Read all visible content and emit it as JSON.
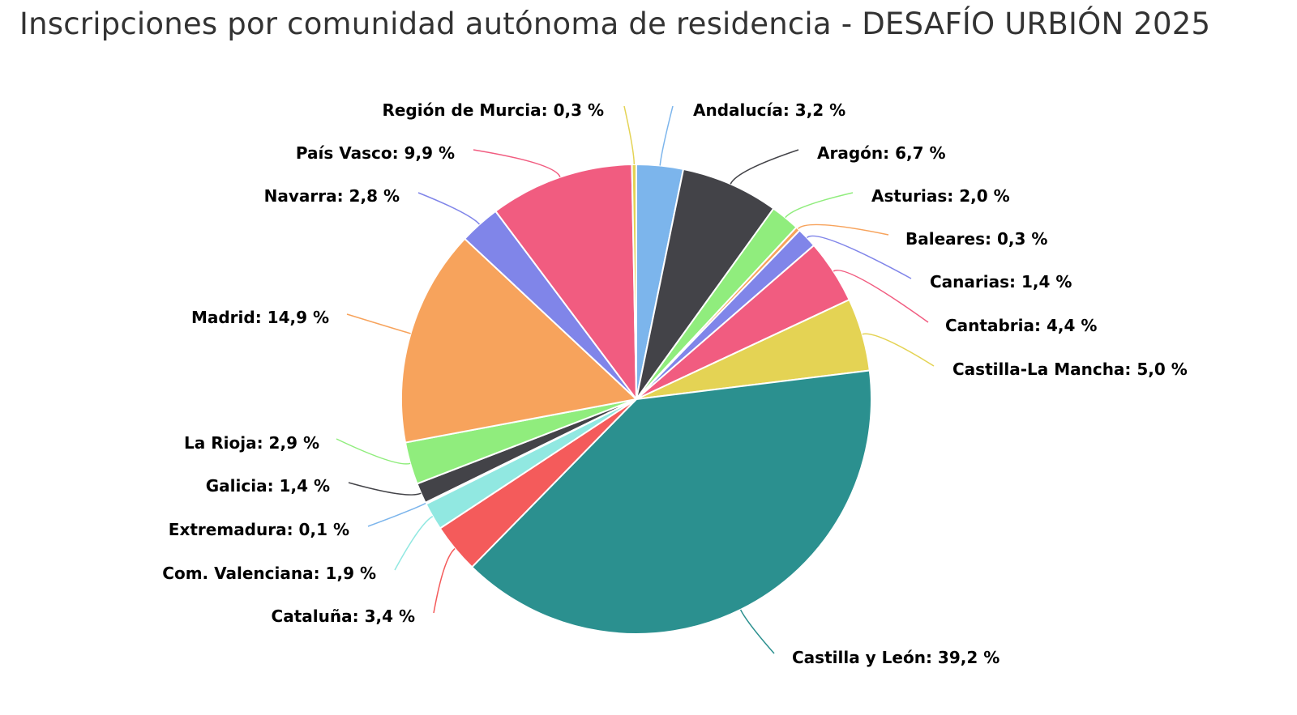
{
  "chart_data": {
    "type": "pie",
    "title": "Inscripciones por comunidad autónoma de residencia - DESAFÍO URBIÓN 2025",
    "label_format": "{name}: {value} %",
    "start_angle": "top",
    "direction": "clockwise",
    "slices": [
      {
        "name": "Andalucía",
        "value": 3.2,
        "label": "3,2",
        "color": "#7cb5ec"
      },
      {
        "name": "Aragón",
        "value": 6.7,
        "label": "6,7",
        "color": "#434348"
      },
      {
        "name": "Asturias",
        "value": 2.0,
        "label": "2,0",
        "color": "#90ed7d"
      },
      {
        "name": "Baleares",
        "value": 0.3,
        "label": "0,3",
        "color": "#f7a35c"
      },
      {
        "name": "Canarias",
        "value": 1.4,
        "label": "1,4",
        "color": "#8085e9"
      },
      {
        "name": "Cantabria",
        "value": 4.4,
        "label": "4,4",
        "color": "#f15c80"
      },
      {
        "name": "Castilla-La Mancha",
        "value": 5.0,
        "label": "5,0",
        "color": "#e4d354"
      },
      {
        "name": "Castilla y León",
        "value": 39.2,
        "label": "39,2",
        "color": "#2b908f"
      },
      {
        "name": "Cataluña",
        "value": 3.4,
        "label": "3,4",
        "color": "#f45b5b"
      },
      {
        "name": "Com. Valenciana",
        "value": 1.9,
        "label": "1,9",
        "color": "#91e8e1"
      },
      {
        "name": "Extremadura",
        "value": 0.1,
        "label": "0,1",
        "color": "#7cb5ec"
      },
      {
        "name": "Galicia",
        "value": 1.4,
        "label": "1,4",
        "color": "#434348"
      },
      {
        "name": "La Rioja",
        "value": 2.9,
        "label": "2,9",
        "color": "#90ed7d"
      },
      {
        "name": "Madrid",
        "value": 14.9,
        "label": "14,9",
        "color": "#f7a35c"
      },
      {
        "name": "Navarra",
        "value": 2.8,
        "label": "2,8",
        "color": "#8085e9"
      },
      {
        "name": "País Vasco",
        "value": 9.9,
        "label": "9,9",
        "color": "#f15c80"
      },
      {
        "name": "Región de Murcia",
        "value": 0.3,
        "label": "0,3",
        "color": "#e4d354"
      }
    ]
  }
}
